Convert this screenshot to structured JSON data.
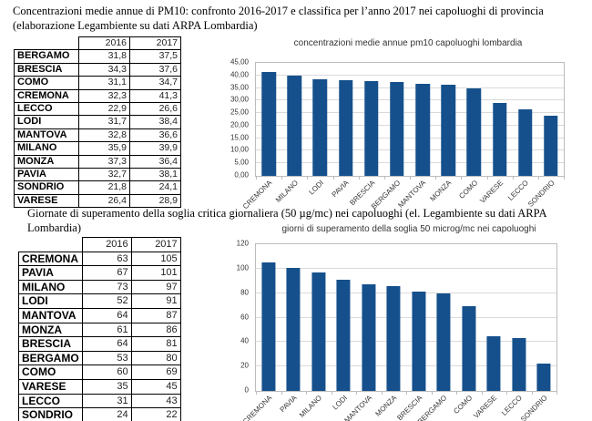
{
  "headings": {
    "section1": "Concentrazioni medie annue di PM10: confronto 2016-2017 e classifica  per l’anno 2017 nei capoluoghi di provincia (elaborazione Legambiente su dati ARPA Lombardia)",
    "section2": "Giornate di superamento della soglia critica giornaliera (50 µg/mc) nei capoluoghi (el. Legambiente su dati ARPA Lombardia)"
  },
  "tables": [
    {
      "name": "concentrazioni-medie-annue",
      "columns": [
        "2016",
        "2017"
      ],
      "rows": [
        [
          "BERGAMO",
          "31,8",
          "37,5"
        ],
        [
          "BRESCIA",
          "34,3",
          "37,6"
        ],
        [
          "COMO",
          "31,1",
          "34,7"
        ],
        [
          "CREMONA",
          "32,3",
          "41,3"
        ],
        [
          "LECCO",
          "22,9",
          "26,6"
        ],
        [
          "LODI",
          "31,7",
          "38,4"
        ],
        [
          "MANTOVA",
          "32,8",
          "36,6"
        ],
        [
          "MILANO",
          "35,9",
          "39,9"
        ],
        [
          "MONZA",
          "37,3",
          "36,4"
        ],
        [
          "PAVIA",
          "32,7",
          "38,1"
        ],
        [
          "SONDRIO",
          "21,8",
          "24,1"
        ],
        [
          "VARESE",
          "26,4",
          "28,9"
        ]
      ]
    },
    {
      "name": "giornate-superamento-soglia",
      "columns": [
        "2016",
        "2017"
      ],
      "rows": [
        [
          "CREMONA",
          "63",
          "105"
        ],
        [
          "PAVIA",
          "67",
          "101"
        ],
        [
          "MILANO",
          "73",
          "97"
        ],
        [
          "LODI",
          "52",
          "91"
        ],
        [
          "MANTOVA",
          "64",
          "87"
        ],
        [
          "MONZA",
          "61",
          "86"
        ],
        [
          "BRESCIA",
          "64",
          "81"
        ],
        [
          "BERGAMO",
          "53",
          "80"
        ],
        [
          "COMO",
          "60",
          "69"
        ],
        [
          "VARESE",
          "35",
          "45"
        ],
        [
          "LECCO",
          "31",
          "43"
        ],
        [
          "SONDRIO",
          "24",
          "22"
        ]
      ]
    }
  ],
  "chart_data": [
    {
      "type": "bar",
      "title": "concentrazioni medie annue pm10 capoluoghi lombardia",
      "categories": [
        "CREMONA",
        "MILANO",
        "LODI",
        "PAVIA",
        "BRESCIA",
        "BERGAMO",
        "MANTOVA",
        "MONZA",
        "COMO",
        "VARESE",
        "LECCO",
        "SONDRIO"
      ],
      "values": [
        41.3,
        39.9,
        38.4,
        38.1,
        37.6,
        37.5,
        36.6,
        36.4,
        34.7,
        28.9,
        26.6,
        24.1
      ],
      "xlabel": "",
      "ylabel": "",
      "ylim": [
        0,
        45
      ],
      "ytick_step": 5,
      "ytick_labels": [
        "0,00",
        "5,00",
        "10,00",
        "15,00",
        "20,00",
        "25,00",
        "30,00",
        "35,00",
        "40,00",
        "45,00"
      ],
      "grid": true,
      "legend": "none",
      "bar_color": "#15508c"
    },
    {
      "type": "bar",
      "title": "giorni di superamento della soglia 50 microg/mc nei capoluoghi",
      "categories": [
        "CREMONA",
        "PAVIA",
        "MILANO",
        "LODI",
        "MANTOVA",
        "MONZA",
        "BRESCIA",
        "BERGAMO",
        "COMO",
        "VARESE",
        "LECCO",
        "SONDRIO"
      ],
      "values": [
        105,
        101,
        97,
        91,
        87,
        86,
        81,
        80,
        69,
        45,
        43,
        22
      ],
      "xlabel": "",
      "ylabel": "",
      "ylim": [
        0,
        120
      ],
      "ytick_step": 20,
      "ytick_labels": [
        "0",
        "20",
        "40",
        "60",
        "80",
        "100",
        "120"
      ],
      "grid": true,
      "legend": "none",
      "bar_color": "#15508c"
    }
  ]
}
